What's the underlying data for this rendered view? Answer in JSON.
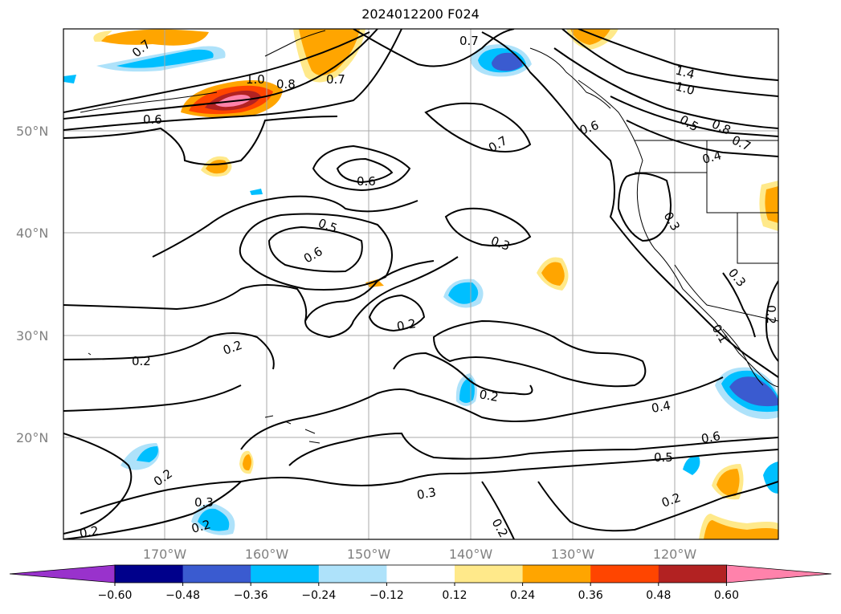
{
  "title": "2024012200 F024",
  "lat_labels": [
    "50°N",
    "40°N",
    "30°N",
    "20°N"
  ],
  "lon_labels": [
    "170°W",
    "160°W",
    "150°W",
    "140°W",
    "130°W",
    "120°W"
  ],
  "colorbar": {
    "ticks": [
      "−0.60",
      "−0.48",
      "−0.36",
      "−0.24",
      "−0.12",
      "0.12",
      "0.24",
      "0.36",
      "0.48",
      "0.60"
    ],
    "colors": [
      "#9932cc",
      "#00008b",
      "#3a5bd0",
      "#00bfff",
      "#aee2fa",
      "#ffffff",
      "#ffe98a",
      "#ffa500",
      "#ff4500",
      "#b22222",
      "#ff82ab"
    ]
  },
  "contour_labels": {
    "l1": "0.7",
    "l2": "1.0",
    "l3": "0.8",
    "l4": "0.7",
    "l5": "0.6",
    "l6": "0.7",
    "l7": "1.4",
    "l8": "1.0",
    "l9": "0.5",
    "l10": "0.8",
    "l11": "0.7",
    "l12": "0.4",
    "l13": "0.6",
    "l14": "0.7",
    "l15": "0.5",
    "l16": "0.6",
    "l17": "0.3",
    "l18": "0.3",
    "l19": "0.3",
    "l20": "0.2",
    "l21": "0.2",
    "l22": "0.2",
    "l23": "0.2",
    "l24": "0.2",
    "l25": "0.4",
    "l26": "0.6",
    "l27": "0.5",
    "l28": "0.3",
    "l29": "0.2",
    "l30": "0.2",
    "l31": "0.3",
    "l32": "0.2",
    "l33": "0.2",
    "l34": "0.2",
    "l35": "0.1"
  }
}
